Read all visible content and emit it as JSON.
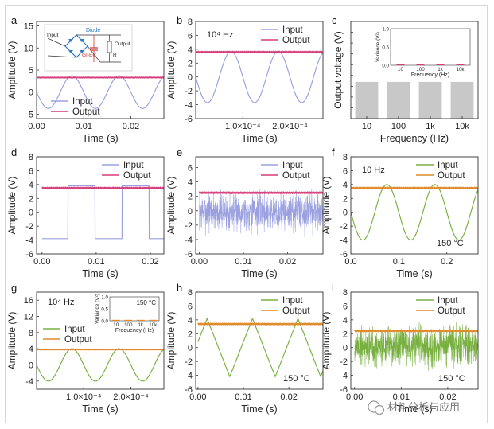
{
  "colors": {
    "input_purple": "#9aa0e0",
    "output_pink": "#d63c7a",
    "input_green": "#78b040",
    "output_orange": "#e08a2a",
    "bar_gray": "#c8c8c8",
    "diode_blue": "#2f78c4"
  },
  "watermark": "材料分析与应用",
  "chart_data": [
    {
      "id": "a",
      "panel_label": "a",
      "type": "line",
      "xlabel": "Time (s)",
      "ylabel": "Amplitude (V)",
      "xlim": [
        0,
        0.027
      ],
      "ylim": [
        -6,
        16
      ],
      "xticks": [
        0,
        0.01,
        0.02
      ],
      "xtick_labels": [
        "0.00",
        "0.01",
        "0.02"
      ],
      "yticks": [
        -5,
        0,
        5,
        10,
        15
      ],
      "ytick_labels": [
        "-5",
        "0",
        "5",
        "10",
        "15"
      ],
      "legend": {
        "position": "bottom-left",
        "entries": [
          "Input",
          "Output"
        ]
      },
      "inset_circuit": {
        "input_label": "Input",
        "diode_label": "Diode",
        "device_label": "GI-EC",
        "output_label": "Output",
        "resistor_label": "R"
      },
      "series": [
        {
          "name": "Input",
          "kind": "sine",
          "amplitude": 3.7,
          "period": 0.01,
          "phase": 0,
          "color": "input_purple"
        },
        {
          "name": "Output",
          "kind": "const",
          "value": 3.3,
          "color": "output_pink"
        }
      ]
    },
    {
      "id": "b",
      "panel_label": "b",
      "type": "line",
      "xlabel": "Time (s)",
      "ylabel": "Amplitude (V)",
      "xlim": [
        0,
        0.00027
      ],
      "ylim": [
        -6,
        8
      ],
      "xticks": [
        0.0001,
        0.0002
      ],
      "xtick_labels": [
        "1.0×10⁻⁴",
        "2.0×10⁻⁴"
      ],
      "yticks": [
        -6,
        -4,
        -2,
        0,
        2,
        4,
        6,
        8
      ],
      "ytick_labels": [
        "-6",
        "-4",
        "-2",
        "0",
        "2",
        "4",
        "6",
        "8"
      ],
      "annotation": "10⁴ Hz",
      "legend": {
        "position": "top-right",
        "entries": [
          "Input",
          "Output"
        ]
      },
      "series": [
        {
          "name": "Input",
          "kind": "sine",
          "amplitude": 3.7,
          "period": 0.0001,
          "phase": 0,
          "color": "input_purple"
        },
        {
          "name": "Output",
          "kind": "const",
          "value": 3.6,
          "color": "output_pink"
        }
      ]
    },
    {
      "id": "c",
      "panel_label": "c",
      "type": "bar",
      "xlabel": "Frequency (Hz)",
      "ylabel": "Output voltage (V)",
      "categories": [
        "10",
        "100",
        "1k",
        "10k"
      ],
      "values": [
        3.4,
        3.4,
        3.4,
        3.4
      ],
      "ylim": [
        0,
        9
      ],
      "yticks": [
        0,
        1,
        2,
        3,
        4,
        5,
        6,
        7,
        8,
        9
      ],
      "inset": {
        "xlabel": "Frequency (Hz)",
        "ylabel": "Variance (V²)",
        "categories": [
          "10",
          "100",
          "1k",
          "10k"
        ],
        "values": [
          0.002,
          0.002,
          0.003,
          0.002
        ],
        "ylim": [
          0,
          1.0
        ],
        "yticks": [
          0,
          0.5,
          1.0
        ],
        "ytick_labels": [
          "0.0",
          "0.5",
          "1.0"
        ]
      }
    },
    {
      "id": "d",
      "panel_label": "d",
      "type": "line",
      "xlabel": "Time (s)",
      "ylabel": "Amplitude (V)",
      "xlim": [
        -0.001,
        0.0225
      ],
      "ylim": [
        -6,
        8
      ],
      "xticks": [
        0,
        0.01,
        0.02
      ],
      "xtick_labels": [
        "0.00",
        "0.01",
        "0.02"
      ],
      "yticks": [
        -6,
        -4,
        -2,
        0,
        2,
        4,
        6,
        8
      ],
      "ytick_labels": [
        "-6",
        "-4",
        "-2",
        "0",
        "2",
        "4",
        "6",
        "8"
      ],
      "legend": {
        "position": "top-right",
        "entries": [
          "Input",
          "Output"
        ]
      },
      "series": [
        {
          "name": "Input",
          "kind": "square",
          "amplitude": 3.8,
          "period": 0.01,
          "phase": 0.0048,
          "color": "input_purple"
        },
        {
          "name": "Output",
          "kind": "const",
          "value": 3.5,
          "color": "output_pink"
        }
      ]
    },
    {
      "id": "e",
      "panel_label": "e",
      "type": "line",
      "xlabel": "Time (s)",
      "ylabel": "Amplitude (V)",
      "xlim": [
        -0.0008,
        0.028
      ],
      "ylim": [
        -6,
        7.5
      ],
      "xticks": [
        0,
        0.01,
        0.02
      ],
      "xtick_labels": [
        "0.00",
        "0.01",
        "0.02"
      ],
      "yticks": [
        -6,
        -4,
        -2,
        0,
        2,
        4,
        6
      ],
      "ytick_labels": [
        "-6",
        "-4",
        "-2",
        "0",
        "2",
        "4",
        "6"
      ],
      "legend": {
        "position": "top-right",
        "entries": [
          "Input",
          "Output"
        ]
      },
      "series": [
        {
          "name": "Input",
          "kind": "noise",
          "mean": -0.1,
          "spread": 1.3,
          "seed": 7,
          "color": "input_purple"
        },
        {
          "name": "Output",
          "kind": "const",
          "value": 2.5,
          "color": "output_pink"
        }
      ]
    },
    {
      "id": "f",
      "panel_label": "f",
      "type": "line",
      "xlabel": "Time (s)",
      "ylabel": "Amplitude (V)",
      "xlim": [
        0,
        0.265
      ],
      "ylim": [
        -6,
        8
      ],
      "xticks": [
        0,
        0.1,
        0.2
      ],
      "xtick_labels": [
        "0.0",
        "0.1",
        "0.2"
      ],
      "yticks": [
        -6,
        -4,
        -2,
        0,
        2,
        4,
        6,
        8
      ],
      "ytick_labels": [
        "-6",
        "-4",
        "-2",
        "0",
        "2",
        "4",
        "6",
        "8"
      ],
      "annotation": "10 Hz",
      "annotation2": "150 °C",
      "legend": {
        "position": "top-right",
        "entries": [
          "Input",
          "Output"
        ]
      },
      "series": [
        {
          "name": "Input",
          "kind": "sine",
          "amplitude": 4.0,
          "period": 0.1,
          "phase": 0,
          "color": "input_green"
        },
        {
          "name": "Output",
          "kind": "const",
          "value": 3.5,
          "color": "output_orange"
        }
      ]
    },
    {
      "id": "g",
      "panel_label": "g",
      "type": "line",
      "xlabel": "Time (s)",
      "ylabel": "Amplitude (V)",
      "xlim": [
        0,
        0.00027
      ],
      "ylim": [
        -6,
        18
      ],
      "xticks": [
        0.0001,
        0.0002
      ],
      "xtick_labels": [
        "1.0×10⁻⁴",
        "2.0×10⁻⁴"
      ],
      "yticks": [
        -4,
        0,
        4,
        8,
        12,
        16
      ],
      "ytick_labels": [
        "-4",
        "0",
        "4",
        "8",
        "12",
        "16"
      ],
      "annotation": "10⁴ Hz",
      "legend": {
        "position": "center-left",
        "entries": [
          "Input",
          "Output"
        ]
      },
      "inset": {
        "title": "150 °C",
        "xlabel": "Frequency (Hz)",
        "ylabel": "Variance (V²)",
        "categories": [
          "10",
          "100",
          "1k",
          "10k"
        ],
        "values": [
          0.01,
          0.01,
          0.01,
          0.01
        ],
        "ylim": [
          0,
          1.0
        ],
        "yticks": [
          0,
          0.5,
          1.0
        ],
        "ytick_labels": [
          "0.0",
          "0.5",
          "1.0"
        ]
      },
      "series": [
        {
          "name": "Input",
          "kind": "sine",
          "amplitude": 4.0,
          "period": 0.0001,
          "phase": 0,
          "color": "input_green"
        },
        {
          "name": "Output",
          "kind": "const",
          "value": 3.8,
          "color": "output_orange"
        }
      ]
    },
    {
      "id": "h",
      "panel_label": "h",
      "type": "line",
      "xlabel": "Time (s)",
      "ylabel": "Amplitude (V)",
      "xlim": [
        -0.0005,
        0.0275
      ],
      "ylim": [
        -6,
        8
      ],
      "xticks": [
        0,
        0.01,
        0.02
      ],
      "xtick_labels": [
        "0.00",
        "0.01",
        "0.02"
      ],
      "yticks": [
        -6,
        -4,
        -2,
        0,
        2,
        4,
        6,
        8
      ],
      "ytick_labels": [
        "-6",
        "-4",
        "-2",
        "0",
        "2",
        "4",
        "6",
        "8"
      ],
      "annotation2": "150 °C",
      "legend": {
        "position": "top-right",
        "entries": [
          "Input",
          "Output"
        ]
      },
      "series": [
        {
          "name": "Input",
          "kind": "triangle",
          "amplitude": 4.2,
          "period": 0.01,
          "phase": -0.003,
          "color": "input_green"
        },
        {
          "name": "Output",
          "kind": "const",
          "value": 3.4,
          "color": "output_orange"
        }
      ]
    },
    {
      "id": "i",
      "panel_label": "i",
      "type": "line",
      "xlabel": "Time (s)",
      "ylabel": "Amplitude (V)",
      "xlim": [
        -0.0008,
        0.0265
      ],
      "ylim": [
        -6,
        8
      ],
      "xticks": [
        0,
        0.01,
        0.02
      ],
      "xtick_labels": [
        "0.00",
        "0.01",
        "0.02"
      ],
      "yticks": [
        -6,
        -4,
        -2,
        0,
        2,
        4,
        6,
        8
      ],
      "ytick_labels": [
        "-6",
        "-4",
        "-2",
        "0",
        "2",
        "4",
        "6",
        "8"
      ],
      "annotation2": "150 °C",
      "legend": {
        "position": "top-right",
        "entries": [
          "Input",
          "Output"
        ]
      },
      "series": [
        {
          "name": "Input",
          "kind": "noise",
          "mean": 0.2,
          "spread": 1.4,
          "seed": 19,
          "color": "input_green"
        },
        {
          "name": "Output",
          "kind": "const",
          "value": 2.4,
          "color": "output_orange"
        }
      ]
    }
  ]
}
